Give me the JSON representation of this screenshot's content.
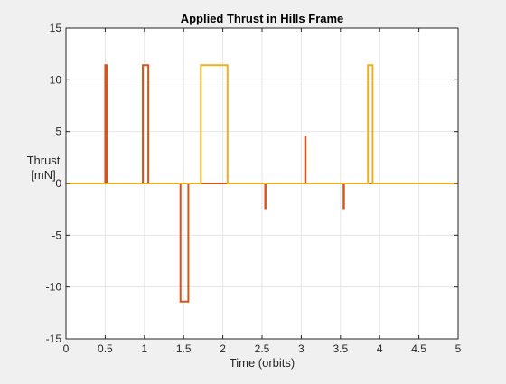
{
  "figure": {
    "background": "#f0f0f0",
    "axes_background": "#ffffff",
    "grid_color": "#e6e6e6",
    "axis_color": "#262626"
  },
  "chart_data": {
    "type": "line",
    "title": "Applied Thrust in Hills Frame",
    "xlabel": "Time (orbits)",
    "ylabel_lines": [
      "Thrust",
      "[mN]"
    ],
    "xlim": [
      0,
      5
    ],
    "ylim": [
      -15,
      15
    ],
    "grid": true,
    "legend": "none",
    "xticks": [
      0,
      0.5,
      1,
      1.5,
      2,
      2.5,
      3,
      3.5,
      4,
      4.5,
      5
    ],
    "xtick_labels": [
      "0",
      "0.5",
      "1",
      "1.5",
      "2",
      "2.5",
      "3",
      "3.5",
      "4",
      "4.5",
      "5"
    ],
    "yticks": [
      -15,
      -10,
      -5,
      0,
      5,
      10,
      15
    ],
    "ytick_labels": [
      "-15",
      "-10",
      "-5",
      "0",
      "5",
      "10",
      "15"
    ],
    "series": [
      {
        "color": "#d95319",
        "points": [
          [
            0,
            0
          ],
          [
            0.5,
            0
          ],
          [
            0.5,
            11.4
          ],
          [
            0.52,
            11.4
          ],
          [
            0.52,
            0
          ],
          [
            0.98,
            0
          ],
          [
            0.98,
            11.4
          ],
          [
            1.05,
            11.4
          ],
          [
            1.05,
            0
          ],
          [
            1.46,
            0
          ],
          [
            1.46,
            -11.4
          ],
          [
            1.56,
            -11.4
          ],
          [
            1.56,
            0
          ],
          [
            2.54,
            0
          ],
          [
            2.54,
            -2.4
          ],
          [
            2.545,
            -2.4
          ],
          [
            2.545,
            0
          ],
          [
            3.05,
            0
          ],
          [
            3.05,
            4.5
          ],
          [
            3.055,
            4.5
          ],
          [
            3.055,
            0
          ],
          [
            3.54,
            0
          ],
          [
            3.54,
            -2.4
          ],
          [
            3.545,
            -2.4
          ],
          [
            3.545,
            0
          ],
          [
            5,
            0
          ]
        ]
      },
      {
        "color": "#edb120",
        "points": [
          [
            0,
            0
          ],
          [
            1.72,
            0
          ],
          [
            1.72,
            11.4
          ],
          [
            2.06,
            11.4
          ],
          [
            2.06,
            0
          ],
          [
            3.85,
            0
          ],
          [
            3.85,
            11.4
          ],
          [
            3.91,
            11.4
          ],
          [
            3.91,
            0
          ],
          [
            5,
            0
          ]
        ]
      }
    ]
  }
}
